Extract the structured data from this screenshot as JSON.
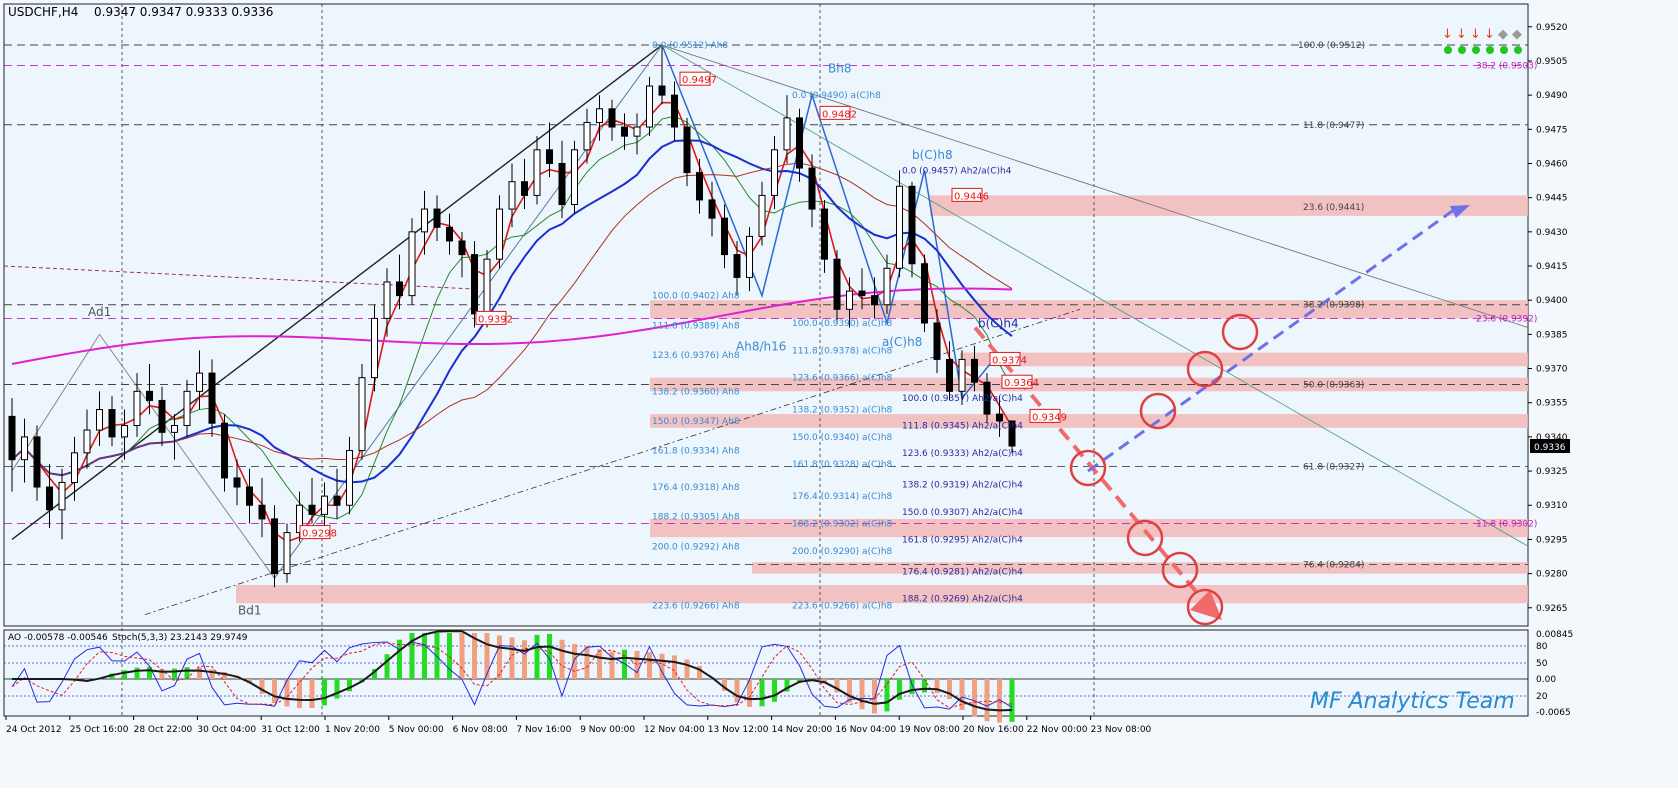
{
  "header": {
    "symbol_tf": "USDCHF,H4",
    "ohlc": "0.9347 0.9347 0.9333 0.9336"
  },
  "indicator_header": {
    "ao": "AO -0.00578 -0.00546",
    "stoch": "Stoch(5,3,3) 23.2143 29.9749"
  },
  "watermark": "MF Analytics Team",
  "current_price": "0.9336",
  "colors": {
    "background": "#f3f8fd",
    "main_bg": "#eef6fd",
    "zone_fill": "#f2b8b8",
    "ema_red": "#e01818",
    "ma_blue": "#1a2fd0",
    "ma_magenta": "#e020d0",
    "ma_brown": "#b03020",
    "ma_green": "#2a8a2a",
    "fib_dark": "#2a2a9a",
    "fib_blue": "#3a8ad0",
    "projection_red": "#f06a6a",
    "projection_blue": "#7070e8",
    "ao_green": "#22dd22",
    "ao_salmon": "#f0a080"
  },
  "chart_data": {
    "type": "candlestick",
    "title": "USDCHF,H4",
    "y_axis_ticks": [
      "0.9520",
      "0.9505",
      "0.9490",
      "0.9475",
      "0.9460",
      "0.9445",
      "0.9430",
      "0.9415",
      "0.9400",
      "0.9385",
      "0.9370",
      "0.9355",
      "0.9340",
      "0.9325",
      "0.9310",
      "0.9295",
      "0.9280",
      "0.9265"
    ],
    "ylim": [
      0.9257,
      0.953
    ],
    "x_axis_labels": [
      "24 Oct 2012",
      "25 Oct 16:00",
      "28 Oct 22:00",
      "30 Oct 04:00",
      "31 Oct 12:00",
      "1 Nov 20:00",
      "5 Nov 00:00",
      "6 Nov 08:00",
      "7 Nov 16:00",
      "9 Nov 00:00",
      "12 Nov 04:00",
      "13 Nov 12:00",
      "14 Nov 20:00",
      "16 Nov 04:00",
      "19 Nov 08:00",
      "20 Nov 16:00",
      "22 Nov 00:00",
      "23 Nov 08:00"
    ],
    "price_markers": [
      "0.9497",
      "0.9482",
      "0.9446",
      "0.9392",
      "0.9374",
      "0.9364",
      "0.9349",
      "0.9298"
    ],
    "wave_labels": [
      "Ad1",
      "Bd1",
      "Bh8",
      "b(C)h8",
      "b(C)h4",
      "Ah8/h16",
      "a(C)h8"
    ],
    "fib_left": [
      "0.0 (0.9512) Ah8",
      "100.0 (0.9402) Ah8",
      "111.8 (0.9389) Ah8",
      "123.6 (0.9376) Ah8",
      "138.2 (0.9360) Ah8",
      "150.0 (0.9347) Ah8",
      "161.8 (0.9334) Ah8",
      "176.4 (0.9318) Ah8",
      "188.2 (0.9305) Ah8",
      "200.0 (0.9292) Ah8",
      "223.6 (0.9266) Ah8"
    ],
    "fib_mid": [
      "0.0 (0.9490) a(C)h8",
      "100.0 (0.9390) a(C)h8",
      "111.8 (0.9378) a(C)h8",
      "123.6 (0.9366) a(C)h8",
      "138.2 (0.9352) a(C)h8",
      "150.0 (0.9340) a(C)h8",
      "161.8 (0.9328) a(C)h8",
      "176.4 (0.9314) a(C)h8",
      "188.2 (0.9302) a(C)h8",
      "200.0 (0.9290) a(C)h8",
      "223.6 (0.9266) a(C)h8"
    ],
    "fib_right": [
      "0.0 (0.9457) Ah2/a(C)h4",
      "100.0 (0.9357) Ah2/a(C)h4",
      "111.8 (0.9345) Ah2/a(C)h4",
      "123.6 (0.9333) Ah2/a(C)h4",
      "138.2 (0.9319) Ah2/a(C)h4",
      "150.0 (0.9307) Ah2/a(C)h4",
      "161.8 (0.9295) Ah2/a(C)h4",
      "176.4 (0.9281) Ah2/a(C)h4",
      "188.2 (0.9269) Ah2/a(C)h4"
    ],
    "fib_far": [
      "100.0 (0.9512)",
      "38.2 (0.9503)",
      "11.8 (0.9477)",
      "23.6 (0.9441)",
      "38.2 (0.9398)",
      "23.6 (0.9392)",
      "50.0 (0.9363)",
      "61.8 (0.9327)",
      "11.8 (0.9302)",
      "76.4 (0.9284)"
    ],
    "ind_ticks": [
      "0.00845",
      "80",
      "50",
      "0.00",
      "20",
      "-0.0065"
    ],
    "bars": [
      {
        "o": 0.9349,
        "h": 0.9357,
        "l": 0.9316,
        "c": 0.933
      },
      {
        "o": 0.933,
        "h": 0.9348,
        "l": 0.932,
        "c": 0.934
      },
      {
        "o": 0.934,
        "h": 0.9345,
        "l": 0.9312,
        "c": 0.9318
      },
      {
        "o": 0.9318,
        "h": 0.9328,
        "l": 0.93,
        "c": 0.9308
      },
      {
        "o": 0.9308,
        "h": 0.9326,
        "l": 0.9295,
        "c": 0.932
      },
      {
        "o": 0.932,
        "h": 0.934,
        "l": 0.9312,
        "c": 0.9333
      },
      {
        "o": 0.9333,
        "h": 0.9352,
        "l": 0.9326,
        "c": 0.9343
      },
      {
        "o": 0.9343,
        "h": 0.936,
        "l": 0.9336,
        "c": 0.9352
      },
      {
        "o": 0.9352,
        "h": 0.9358,
        "l": 0.9336,
        "c": 0.934
      },
      {
        "o": 0.934,
        "h": 0.9352,
        "l": 0.933,
        "c": 0.9345
      },
      {
        "o": 0.9345,
        "h": 0.9368,
        "l": 0.934,
        "c": 0.936
      },
      {
        "o": 0.936,
        "h": 0.9372,
        "l": 0.935,
        "c": 0.9356
      },
      {
        "o": 0.9356,
        "h": 0.9362,
        "l": 0.9336,
        "c": 0.9342
      },
      {
        "o": 0.9342,
        "h": 0.935,
        "l": 0.933,
        "c": 0.9345
      },
      {
        "o": 0.9345,
        "h": 0.9365,
        "l": 0.934,
        "c": 0.936
      },
      {
        "o": 0.936,
        "h": 0.9378,
        "l": 0.9352,
        "c": 0.9368
      },
      {
        "o": 0.9368,
        "h": 0.9374,
        "l": 0.934,
        "c": 0.9346
      },
      {
        "o": 0.9346,
        "h": 0.935,
        "l": 0.9316,
        "c": 0.9322
      },
      {
        "o": 0.9322,
        "h": 0.933,
        "l": 0.931,
        "c": 0.9318
      },
      {
        "o": 0.9318,
        "h": 0.9326,
        "l": 0.9302,
        "c": 0.931
      },
      {
        "o": 0.931,
        "h": 0.9322,
        "l": 0.9296,
        "c": 0.9304
      },
      {
        "o": 0.9304,
        "h": 0.931,
        "l": 0.9274,
        "c": 0.928
      },
      {
        "o": 0.928,
        "h": 0.9302,
        "l": 0.9276,
        "c": 0.9298
      },
      {
        "o": 0.9298,
        "h": 0.9316,
        "l": 0.9294,
        "c": 0.931
      },
      {
        "o": 0.931,
        "h": 0.9322,
        "l": 0.9302,
        "c": 0.9306
      },
      {
        "o": 0.9306,
        "h": 0.932,
        "l": 0.9298,
        "c": 0.9314
      },
      {
        "o": 0.9314,
        "h": 0.9326,
        "l": 0.9304,
        "c": 0.931
      },
      {
        "o": 0.931,
        "h": 0.934,
        "l": 0.9306,
        "c": 0.9334
      },
      {
        "o": 0.9334,
        "h": 0.9372,
        "l": 0.933,
        "c": 0.9366
      },
      {
        "o": 0.9366,
        "h": 0.9398,
        "l": 0.936,
        "c": 0.9392
      },
      {
        "o": 0.9392,
        "h": 0.9414,
        "l": 0.9384,
        "c": 0.9408
      },
      {
        "o": 0.9408,
        "h": 0.942,
        "l": 0.9396,
        "c": 0.9402
      },
      {
        "o": 0.9402,
        "h": 0.9436,
        "l": 0.9398,
        "c": 0.943
      },
      {
        "o": 0.943,
        "h": 0.9448,
        "l": 0.942,
        "c": 0.944
      },
      {
        "o": 0.944,
        "h": 0.9446,
        "l": 0.9426,
        "c": 0.9432
      },
      {
        "o": 0.9432,
        "h": 0.9438,
        "l": 0.942,
        "c": 0.9426
      },
      {
        "o": 0.9426,
        "h": 0.943,
        "l": 0.941,
        "c": 0.942
      },
      {
        "o": 0.942,
        "h": 0.9426,
        "l": 0.9388,
        "c": 0.9394
      },
      {
        "o": 0.9394,
        "h": 0.9422,
        "l": 0.9388,
        "c": 0.9418
      },
      {
        "o": 0.9418,
        "h": 0.9446,
        "l": 0.9414,
        "c": 0.944
      },
      {
        "o": 0.944,
        "h": 0.946,
        "l": 0.9432,
        "c": 0.9452
      },
      {
        "o": 0.9452,
        "h": 0.9462,
        "l": 0.944,
        "c": 0.9446
      },
      {
        "o": 0.9446,
        "h": 0.9472,
        "l": 0.9442,
        "c": 0.9466
      },
      {
        "o": 0.9466,
        "h": 0.9478,
        "l": 0.9454,
        "c": 0.946
      },
      {
        "o": 0.946,
        "h": 0.947,
        "l": 0.9436,
        "c": 0.9442
      },
      {
        "o": 0.9442,
        "h": 0.947,
        "l": 0.9438,
        "c": 0.9466
      },
      {
        "o": 0.9466,
        "h": 0.9484,
        "l": 0.946,
        "c": 0.9478
      },
      {
        "o": 0.9478,
        "h": 0.949,
        "l": 0.947,
        "c": 0.9484
      },
      {
        "o": 0.9484,
        "h": 0.9488,
        "l": 0.947,
        "c": 0.9476
      },
      {
        "o": 0.9476,
        "h": 0.9482,
        "l": 0.9466,
        "c": 0.9472
      },
      {
        "o": 0.9472,
        "h": 0.9482,
        "l": 0.9464,
        "c": 0.9476
      },
      {
        "o": 0.9476,
        "h": 0.9498,
        "l": 0.9472,
        "c": 0.9494
      },
      {
        "o": 0.9494,
        "h": 0.9512,
        "l": 0.9486,
        "c": 0.949
      },
      {
        "o": 0.949,
        "h": 0.9496,
        "l": 0.947,
        "c": 0.9476
      },
      {
        "o": 0.9476,
        "h": 0.948,
        "l": 0.945,
        "c": 0.9456
      },
      {
        "o": 0.9456,
        "h": 0.9462,
        "l": 0.9438,
        "c": 0.9444
      },
      {
        "o": 0.9444,
        "h": 0.9452,
        "l": 0.9428,
        "c": 0.9436
      },
      {
        "o": 0.9436,
        "h": 0.9442,
        "l": 0.9414,
        "c": 0.942
      },
      {
        "o": 0.942,
        "h": 0.9426,
        "l": 0.9402,
        "c": 0.941
      },
      {
        "o": 0.941,
        "h": 0.9432,
        "l": 0.9404,
        "c": 0.9428
      },
      {
        "o": 0.9428,
        "h": 0.9452,
        "l": 0.9424,
        "c": 0.9446
      },
      {
        "o": 0.9446,
        "h": 0.9472,
        "l": 0.944,
        "c": 0.9466
      },
      {
        "o": 0.9466,
        "h": 0.949,
        "l": 0.946,
        "c": 0.948
      },
      {
        "o": 0.948,
        "h": 0.9484,
        "l": 0.9452,
        "c": 0.9458
      },
      {
        "o": 0.9458,
        "h": 0.9464,
        "l": 0.9432,
        "c": 0.944
      },
      {
        "o": 0.944,
        "h": 0.9444,
        "l": 0.9412,
        "c": 0.9418
      },
      {
        "o": 0.9418,
        "h": 0.9422,
        "l": 0.939,
        "c": 0.9396
      },
      {
        "o": 0.9396,
        "h": 0.941,
        "l": 0.9388,
        "c": 0.9404
      },
      {
        "o": 0.9404,
        "h": 0.9414,
        "l": 0.9396,
        "c": 0.9402
      },
      {
        "o": 0.9402,
        "h": 0.941,
        "l": 0.9392,
        "c": 0.9398
      },
      {
        "o": 0.9398,
        "h": 0.942,
        "l": 0.9394,
        "c": 0.9414
      },
      {
        "o": 0.9414,
        "h": 0.9457,
        "l": 0.941,
        "c": 0.945
      },
      {
        "o": 0.945,
        "h": 0.9452,
        "l": 0.941,
        "c": 0.9416
      },
      {
        "o": 0.9416,
        "h": 0.942,
        "l": 0.9386,
        "c": 0.939
      },
      {
        "o": 0.939,
        "h": 0.9396,
        "l": 0.9368,
        "c": 0.9374
      },
      {
        "o": 0.9374,
        "h": 0.9382,
        "l": 0.9356,
        "c": 0.936
      },
      {
        "o": 0.936,
        "h": 0.9378,
        "l": 0.9354,
        "c": 0.9374
      },
      {
        "o": 0.9374,
        "h": 0.938,
        "l": 0.936,
        "c": 0.9364
      },
      {
        "o": 0.9364,
        "h": 0.9368,
        "l": 0.9346,
        "c": 0.935
      },
      {
        "o": 0.935,
        "h": 0.9358,
        "l": 0.934,
        "c": 0.9347
      },
      {
        "o": 0.9347,
        "h": 0.9347,
        "l": 0.9333,
        "c": 0.9336
      }
    ]
  }
}
